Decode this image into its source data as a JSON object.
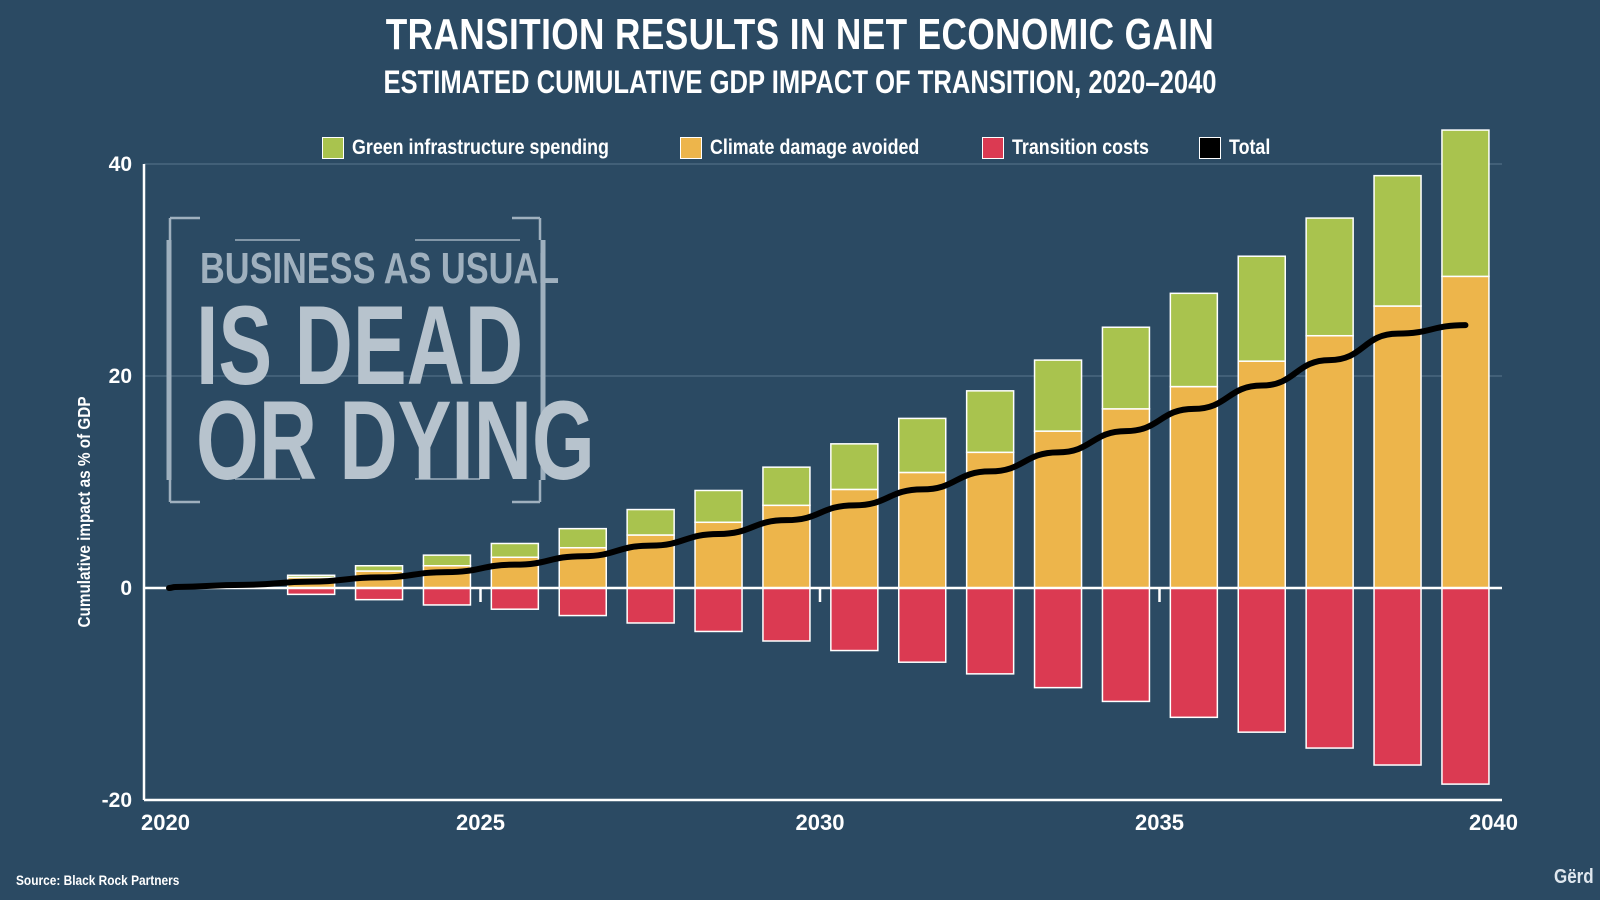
{
  "header": {
    "title": "TRANSITION RESULTS IN NET ECONOMIC GAIN",
    "subtitle": "ESTIMATED CUMULATIVE GDP IMPACT OF TRANSITION, 2020–2040"
  },
  "stamp": {
    "line1": "BUSINESS AS USUAL",
    "line2": "IS DEAD",
    "line3": "OR DYING"
  },
  "footer": {
    "source": "Source: Black Rock Partners",
    "logo": "Gërd"
  },
  "colors": {
    "background": "#2b4a63",
    "green": "#a9c34e",
    "orange": "#edb54b",
    "red": "#db3a52",
    "total": "#000000"
  },
  "chart_data": {
    "type": "bar",
    "stacked": true,
    "title": "TRANSITION RESULTS IN NET ECONOMIC GAIN",
    "subtitle": "ESTIMATED CUMULATIVE GDP IMPACT OF TRANSITION, 2020–2040",
    "xlabel": "",
    "ylabel": "Cumulative impact as % of GDP",
    "xlim": [
      2020,
      2040
    ],
    "ylim": [
      -20,
      40
    ],
    "x_ticks": [
      "2020",
      "2025",
      "2030",
      "2035",
      "2040"
    ],
    "y_ticks": [
      "40",
      "20",
      "0",
      "-20"
    ],
    "grid": true,
    "legend_position": "top-center",
    "x": [
      2021,
      2022,
      2023,
      2024,
      2025,
      2026,
      2027,
      2028,
      2029,
      2030,
      2031,
      2032,
      2033,
      2034,
      2035,
      2036,
      2037,
      2038,
      2039,
      2040
    ],
    "series": [
      {
        "name": "Green infrastructure spending",
        "color_key": "green",
        "values": [
          0,
          0,
          0.2,
          0.5,
          1.0,
          1.3,
          1.8,
          2.4,
          3.0,
          3.6,
          4.3,
          5.1,
          5.8,
          6.7,
          7.7,
          8.8,
          9.9,
          11.1,
          12.3,
          13.8
        ]
      },
      {
        "name": "Climate damage avoided",
        "color_key": "orange",
        "values": [
          0,
          0,
          1.0,
          1.6,
          2.1,
          2.9,
          3.8,
          5.0,
          6.2,
          7.8,
          9.3,
          10.9,
          12.8,
          14.8,
          16.9,
          19.0,
          21.4,
          23.8,
          26.6,
          29.4
        ]
      },
      {
        "name": "Transition costs",
        "color_key": "red",
        "values": [
          0,
          0,
          -0.6,
          -1.1,
          -1.6,
          -2.0,
          -2.6,
          -3.3,
          -4.1,
          -5.0,
          -5.9,
          -7.0,
          -8.1,
          -9.4,
          -10.7,
          -12.2,
          -13.6,
          -15.1,
          -16.7,
          -18.5
        ]
      },
      {
        "name": "Total",
        "color_key": "total",
        "kind": "line",
        "x": [
          2020,
          2021,
          2022,
          2023,
          2024,
          2025,
          2026,
          2027,
          2028,
          2029,
          2030,
          2031,
          2032,
          2033,
          2034,
          2035,
          2036,
          2037,
          2038,
          2039,
          2040
        ],
        "values": [
          0,
          0.1,
          0.3,
          0.6,
          1.0,
          1.5,
          2.2,
          3.0,
          4.0,
          5.1,
          6.4,
          7.8,
          9.3,
          11.0,
          12.8,
          14.8,
          16.9,
          19.1,
          21.5,
          24.0,
          24.8
        ]
      }
    ]
  }
}
